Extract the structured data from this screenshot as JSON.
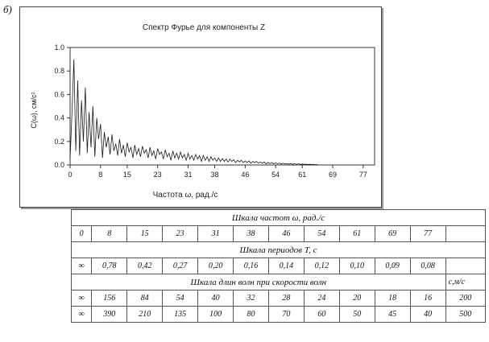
{
  "figure_label": "б)",
  "chart_data": {
    "type": "line",
    "title": "Спектр Фурье для компоненты Z",
    "xlabel": "Частота ω, рад./с",
    "ylabel": "C(ω), см/с²",
    "x_ticks": [
      "0",
      "8",
      "15",
      "23",
      "31",
      "38",
      "46",
      "54",
      "61",
      "69",
      "77"
    ],
    "y_ticks": [
      "0.0",
      "0.2",
      "0.4",
      "0.6",
      "0.8",
      "1.0"
    ],
    "xlim": [
      0,
      80
    ],
    "ylim": [
      0,
      1.0
    ],
    "grid": false,
    "series": [
      {
        "color": "#1a1a1a",
        "x": [
          0.0,
          0.5,
          1.0,
          1.5,
          2.0,
          2.5,
          3.0,
          3.5,
          4.0,
          4.5,
          5.0,
          5.5,
          6.0,
          6.5,
          7.0,
          7.5,
          8.0,
          8.5,
          9.0,
          9.5,
          10.0,
          10.5,
          11.0,
          11.5,
          12.0,
          12.5,
          13.0,
          13.5,
          14.0,
          14.5,
          15.0,
          15.5,
          16.0,
          16.5,
          17.0,
          17.5,
          18.0,
          18.5,
          19.0,
          19.5,
          20.0,
          20.5,
          21.0,
          21.5,
          22.0,
          22.5,
          23.0,
          23.5,
          24.0,
          24.5,
          25.0,
          25.5,
          26.0,
          26.5,
          27.0,
          27.5,
          28.0,
          28.5,
          29.0,
          29.5,
          30.0,
          30.5,
          31.0,
          31.5,
          32.0,
          32.5,
          33.0,
          33.5,
          34.0,
          34.5,
          35.0,
          35.5,
          36.0,
          36.5,
          37.0,
          37.5,
          38.0,
          38.5,
          39.0,
          39.5,
          40.0,
          40.5,
          41.0,
          41.5,
          42.0,
          42.5,
          43.0,
          43.5,
          44.0,
          44.5,
          45.0,
          45.5,
          46.0,
          46.5,
          47.0,
          47.5,
          48.0,
          48.5,
          49.0,
          49.5,
          50.0,
          50.5,
          51.0,
          51.5,
          52.0,
          52.5,
          53.0,
          53.5,
          54.0,
          54.5,
          55.0,
          55.5,
          56.0,
          56.5,
          57.0,
          57.5,
          58.0,
          58.5,
          59.0,
          59.5,
          60.0,
          60.5,
          61.0,
          61.5,
          62.0,
          62.5,
          63.0,
          63.5,
          64.0,
          64.5,
          65.0
        ],
        "y": [
          0.05,
          0.45,
          0.9,
          0.12,
          0.72,
          0.08,
          0.55,
          0.2,
          0.66,
          0.1,
          0.45,
          0.15,
          0.5,
          0.07,
          0.4,
          0.22,
          0.35,
          0.06,
          0.28,
          0.15,
          0.24,
          0.09,
          0.26,
          0.12,
          0.18,
          0.08,
          0.22,
          0.1,
          0.17,
          0.07,
          0.19,
          0.11,
          0.15,
          0.06,
          0.17,
          0.09,
          0.14,
          0.07,
          0.16,
          0.1,
          0.13,
          0.06,
          0.15,
          0.08,
          0.12,
          0.05,
          0.14,
          0.09,
          0.11,
          0.05,
          0.13,
          0.07,
          0.1,
          0.04,
          0.12,
          0.06,
          0.1,
          0.05,
          0.11,
          0.06,
          0.09,
          0.04,
          0.1,
          0.05,
          0.08,
          0.04,
          0.09,
          0.05,
          0.08,
          0.03,
          0.08,
          0.04,
          0.07,
          0.03,
          0.07,
          0.04,
          0.06,
          0.03,
          0.06,
          0.03,
          0.055,
          0.03,
          0.05,
          0.025,
          0.05,
          0.03,
          0.045,
          0.02,
          0.04,
          0.025,
          0.04,
          0.02,
          0.035,
          0.02,
          0.035,
          0.015,
          0.03,
          0.02,
          0.03,
          0.015,
          0.025,
          0.015,
          0.025,
          0.01,
          0.02,
          0.012,
          0.02,
          0.01,
          0.018,
          0.01,
          0.015,
          0.008,
          0.015,
          0.008,
          0.012,
          0.007,
          0.012,
          0.006,
          0.01,
          0.006,
          0.01,
          0.005,
          0.008,
          0.005,
          0.007,
          0.004,
          0.006,
          0.004,
          0.005,
          0.003,
          0.004
        ]
      }
    ]
  },
  "table": {
    "freq_header": "Шкала частот ω, рад./с",
    "freq_row": [
      "0",
      "8",
      "15",
      "23",
      "31",
      "38",
      "46",
      "54",
      "61",
      "69",
      "77",
      ""
    ],
    "period_header": "Шкала периодов T, с",
    "period_row": [
      "∞",
      "0,78",
      "0,42",
      "0,27",
      "0,20",
      "0,16",
      "0,14",
      "0,12",
      "0,10",
      "0,09",
      "0,08",
      ""
    ],
    "wave_header": "Шкала длин волн при скорости волн",
    "wave_unit": "с,м/с",
    "wave_rows": [
      [
        "∞",
        "156",
        "84",
        "54",
        "40",
        "32",
        "28",
        "24",
        "20",
        "18",
        "16",
        "200"
      ],
      [
        "∞",
        "390",
        "210",
        "135",
        "100",
        "80",
        "70",
        "60",
        "50",
        "45",
        "40",
        "500"
      ]
    ]
  }
}
